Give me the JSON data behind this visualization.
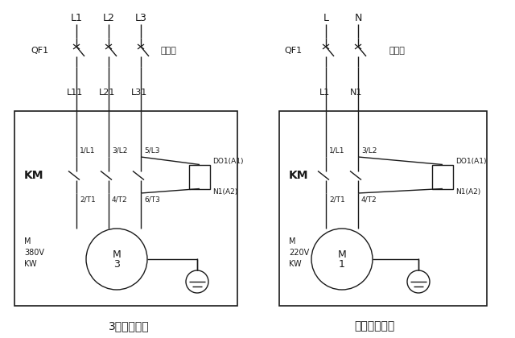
{
  "bg_color": "#ffffff",
  "line_color": "#1a1a1a",
  "fig_width": 6.4,
  "fig_height": 4.2,
  "dpi": 100,
  "left_title": "3相水泵接线",
  "right_title": "单相水泵接线",
  "left_phases": [
    "L1",
    "L2",
    "L3"
  ],
  "left_outputs": [
    "L11",
    "L21",
    "L31"
  ],
  "left_top_labels": [
    "1/L1",
    "3/L2",
    "5/L3"
  ],
  "left_bot_labels": [
    "2/T1",
    "4/T2",
    "6/T3"
  ],
  "left_motor_label": [
    "M",
    "3"
  ],
  "left_voltage": [
    "M",
    "380V",
    "KW"
  ],
  "right_phases": [
    "L",
    "N"
  ],
  "right_outputs": [
    "L1",
    "N1"
  ],
  "right_top_labels": [
    "1/L1",
    "3/L2"
  ],
  "right_bot_labels": [
    "2/T1",
    "4/T2"
  ],
  "right_motor_label": [
    "M",
    "1"
  ],
  "right_voltage": [
    "M",
    "220V",
    "KW"
  ],
  "coil_label_top": "DO1(A1)",
  "coil_label_bot": "N1(A2)",
  "km_label": "KM",
  "qf1_label": "QF1",
  "breaker_label": "断路器"
}
